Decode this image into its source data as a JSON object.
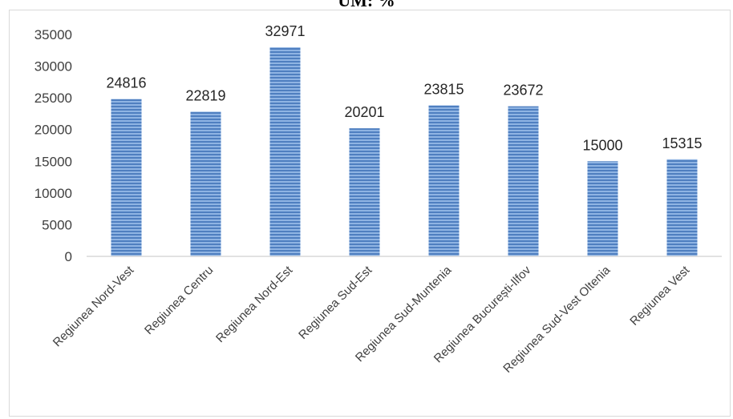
{
  "header": {
    "title": "UM: %"
  },
  "chart_data": {
    "type": "bar",
    "categories": [
      "Regiunea Nord-Vest",
      "Regiunea Centru",
      "Regiunea Nord-Est",
      "Regiunea Sud-Est",
      "Regiunea Sud-Muntenia",
      "Regiunea București-Ilfov",
      "Regiunea Sud-Vest Oltenia",
      "Regiunea Vest"
    ],
    "values": [
      24816,
      22819,
      32971,
      20201,
      23815,
      23672,
      15000,
      15315
    ],
    "ylim": [
      0,
      35000
    ],
    "yticks": [
      "0",
      "5000",
      "10000",
      "15000",
      "20000",
      "25000",
      "30000",
      "35000"
    ],
    "grid": false,
    "legend": "none",
    "colors": {
      "bar": "#6f9bd4",
      "bar_stripe": "#4f7fc0",
      "axis": "#d9d9d9"
    }
  }
}
